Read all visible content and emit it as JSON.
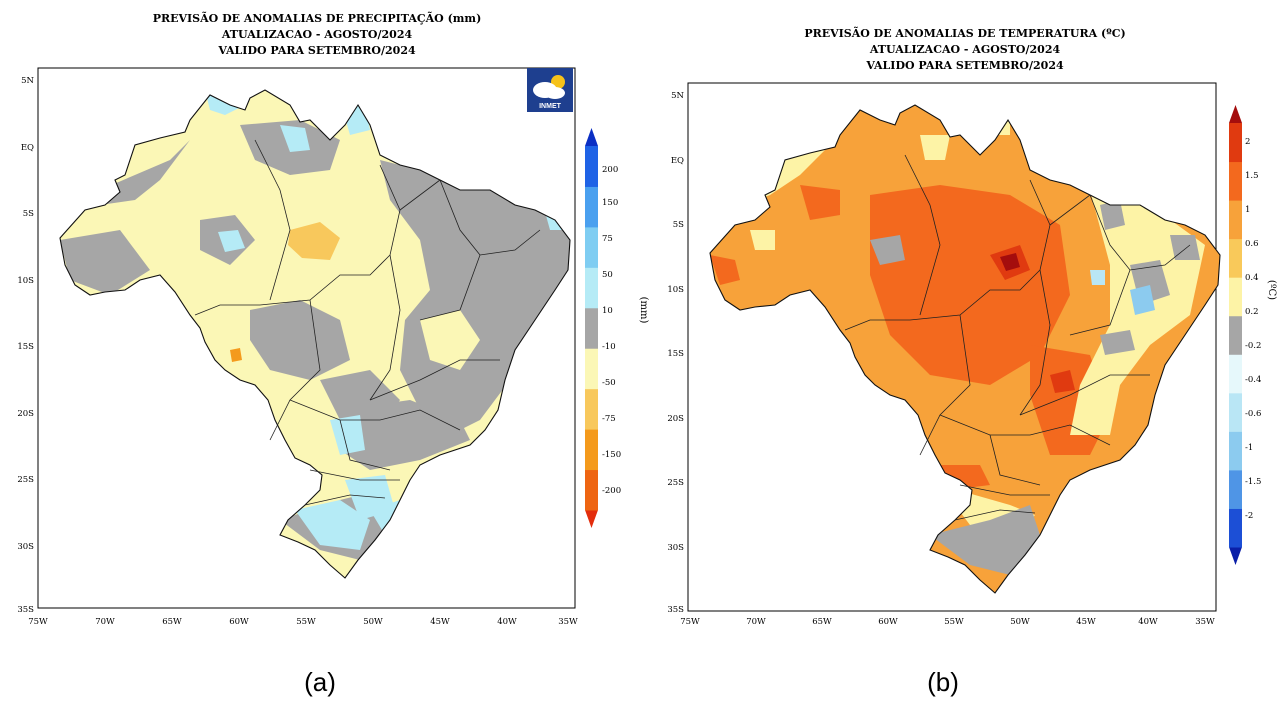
{
  "panels": [
    {
      "caption": "(a)",
      "title_lines": [
        "PREVISÃO DE ANOMALIAS DE PRECIPITAÇÃO (mm)",
        "ATUALIZACAO - AGOSTO/2024",
        "VALIDO PARA SETEMBRO/2024"
      ],
      "logo_text": "INMET",
      "lat_ticks": [
        "5N",
        "EQ",
        "5S",
        "10S",
        "15S",
        "20S",
        "25S",
        "30S",
        "35S"
      ],
      "lon_ticks": [
        "75W",
        "70W",
        "65W",
        "60W",
        "55W",
        "50W",
        "45W",
        "40W",
        "35W"
      ],
      "colorbar": {
        "unit": "(mm)",
        "labels": [
          "200",
          "150",
          "75",
          "50",
          "10",
          "-10",
          "-50",
          "-75",
          "-150",
          "-200"
        ],
        "colors": [
          "#0b2fc4",
          "#1f63e6",
          "#4aa0ef",
          "#7fcdf2",
          "#b5ebf6",
          "#a6a6a6",
          "#fbf7b6",
          "#f8c85c",
          "#f49a1c",
          "#ee6512",
          "#e32d0c"
        ]
      }
    },
    {
      "caption": "(b)",
      "title_lines": [
        "PREVISÃO DE ANOMALIAS DE TEMPERATURA (ºC)",
        "ATUALIZACAO - AGOSTO/2024",
        "VALIDO PARA SETEMBRO/2024"
      ],
      "lat_ticks": [
        "5N",
        "EQ",
        "5S",
        "10S",
        "15S",
        "20S",
        "25S",
        "30S",
        "35S"
      ],
      "lon_ticks": [
        "75W",
        "70W",
        "65W",
        "60W",
        "55W",
        "50W",
        "45W",
        "40W",
        "35W"
      ],
      "colorbar": {
        "unit": "(ºC)",
        "labels": [
          "2",
          "1.5",
          "1",
          "0.6",
          "0.4",
          "0.2",
          "-0.2",
          "-0.4",
          "-0.6",
          "-1",
          "-1.5",
          "-2"
        ],
        "colors": [
          "#a40d0d",
          "#e03a10",
          "#f3691e",
          "#f7a23a",
          "#f9c95a",
          "#fdf3a6",
          "#a6a6a6",
          "#e6f8fb",
          "#b9e6f5",
          "#8ccbef",
          "#4f95e6",
          "#1c4fd6",
          "#0a1fa8"
        ]
      }
    }
  ]
}
